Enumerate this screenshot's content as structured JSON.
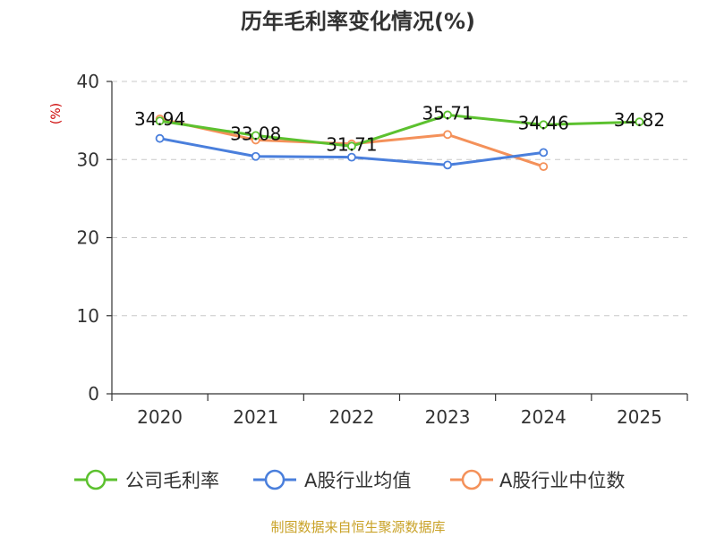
{
  "chart_data": {
    "type": "line",
    "title": "历年毛利率变化情况(%)",
    "ylabel": "(%)",
    "xlabel": "",
    "categories": [
      "2020",
      "2021",
      "2022",
      "2023",
      "2024",
      "2025"
    ],
    "ylim": [
      0,
      40
    ],
    "yticks": [
      0,
      10,
      20,
      30,
      40
    ],
    "grid": true,
    "legend_position": "bottom",
    "series": [
      {
        "name": "公司毛利率",
        "color": "#5cc12f",
        "values": [
          34.94,
          33.08,
          31.71,
          35.71,
          34.46,
          34.82
        ],
        "labels": [
          "34.94",
          "33.08",
          "31.71",
          "35.71",
          "34.46",
          "34.82"
        ]
      },
      {
        "name": "A股行业均值",
        "color": "#4a7fdc",
        "values": [
          32.7,
          30.4,
          30.3,
          29.3,
          30.9,
          null
        ]
      },
      {
        "name": "A股行业中位数",
        "color": "#f4915a",
        "values": [
          35.2,
          32.5,
          32.0,
          33.2,
          29.1,
          null
        ]
      }
    ]
  },
  "source": "制图数据来自恒生聚源数据库"
}
